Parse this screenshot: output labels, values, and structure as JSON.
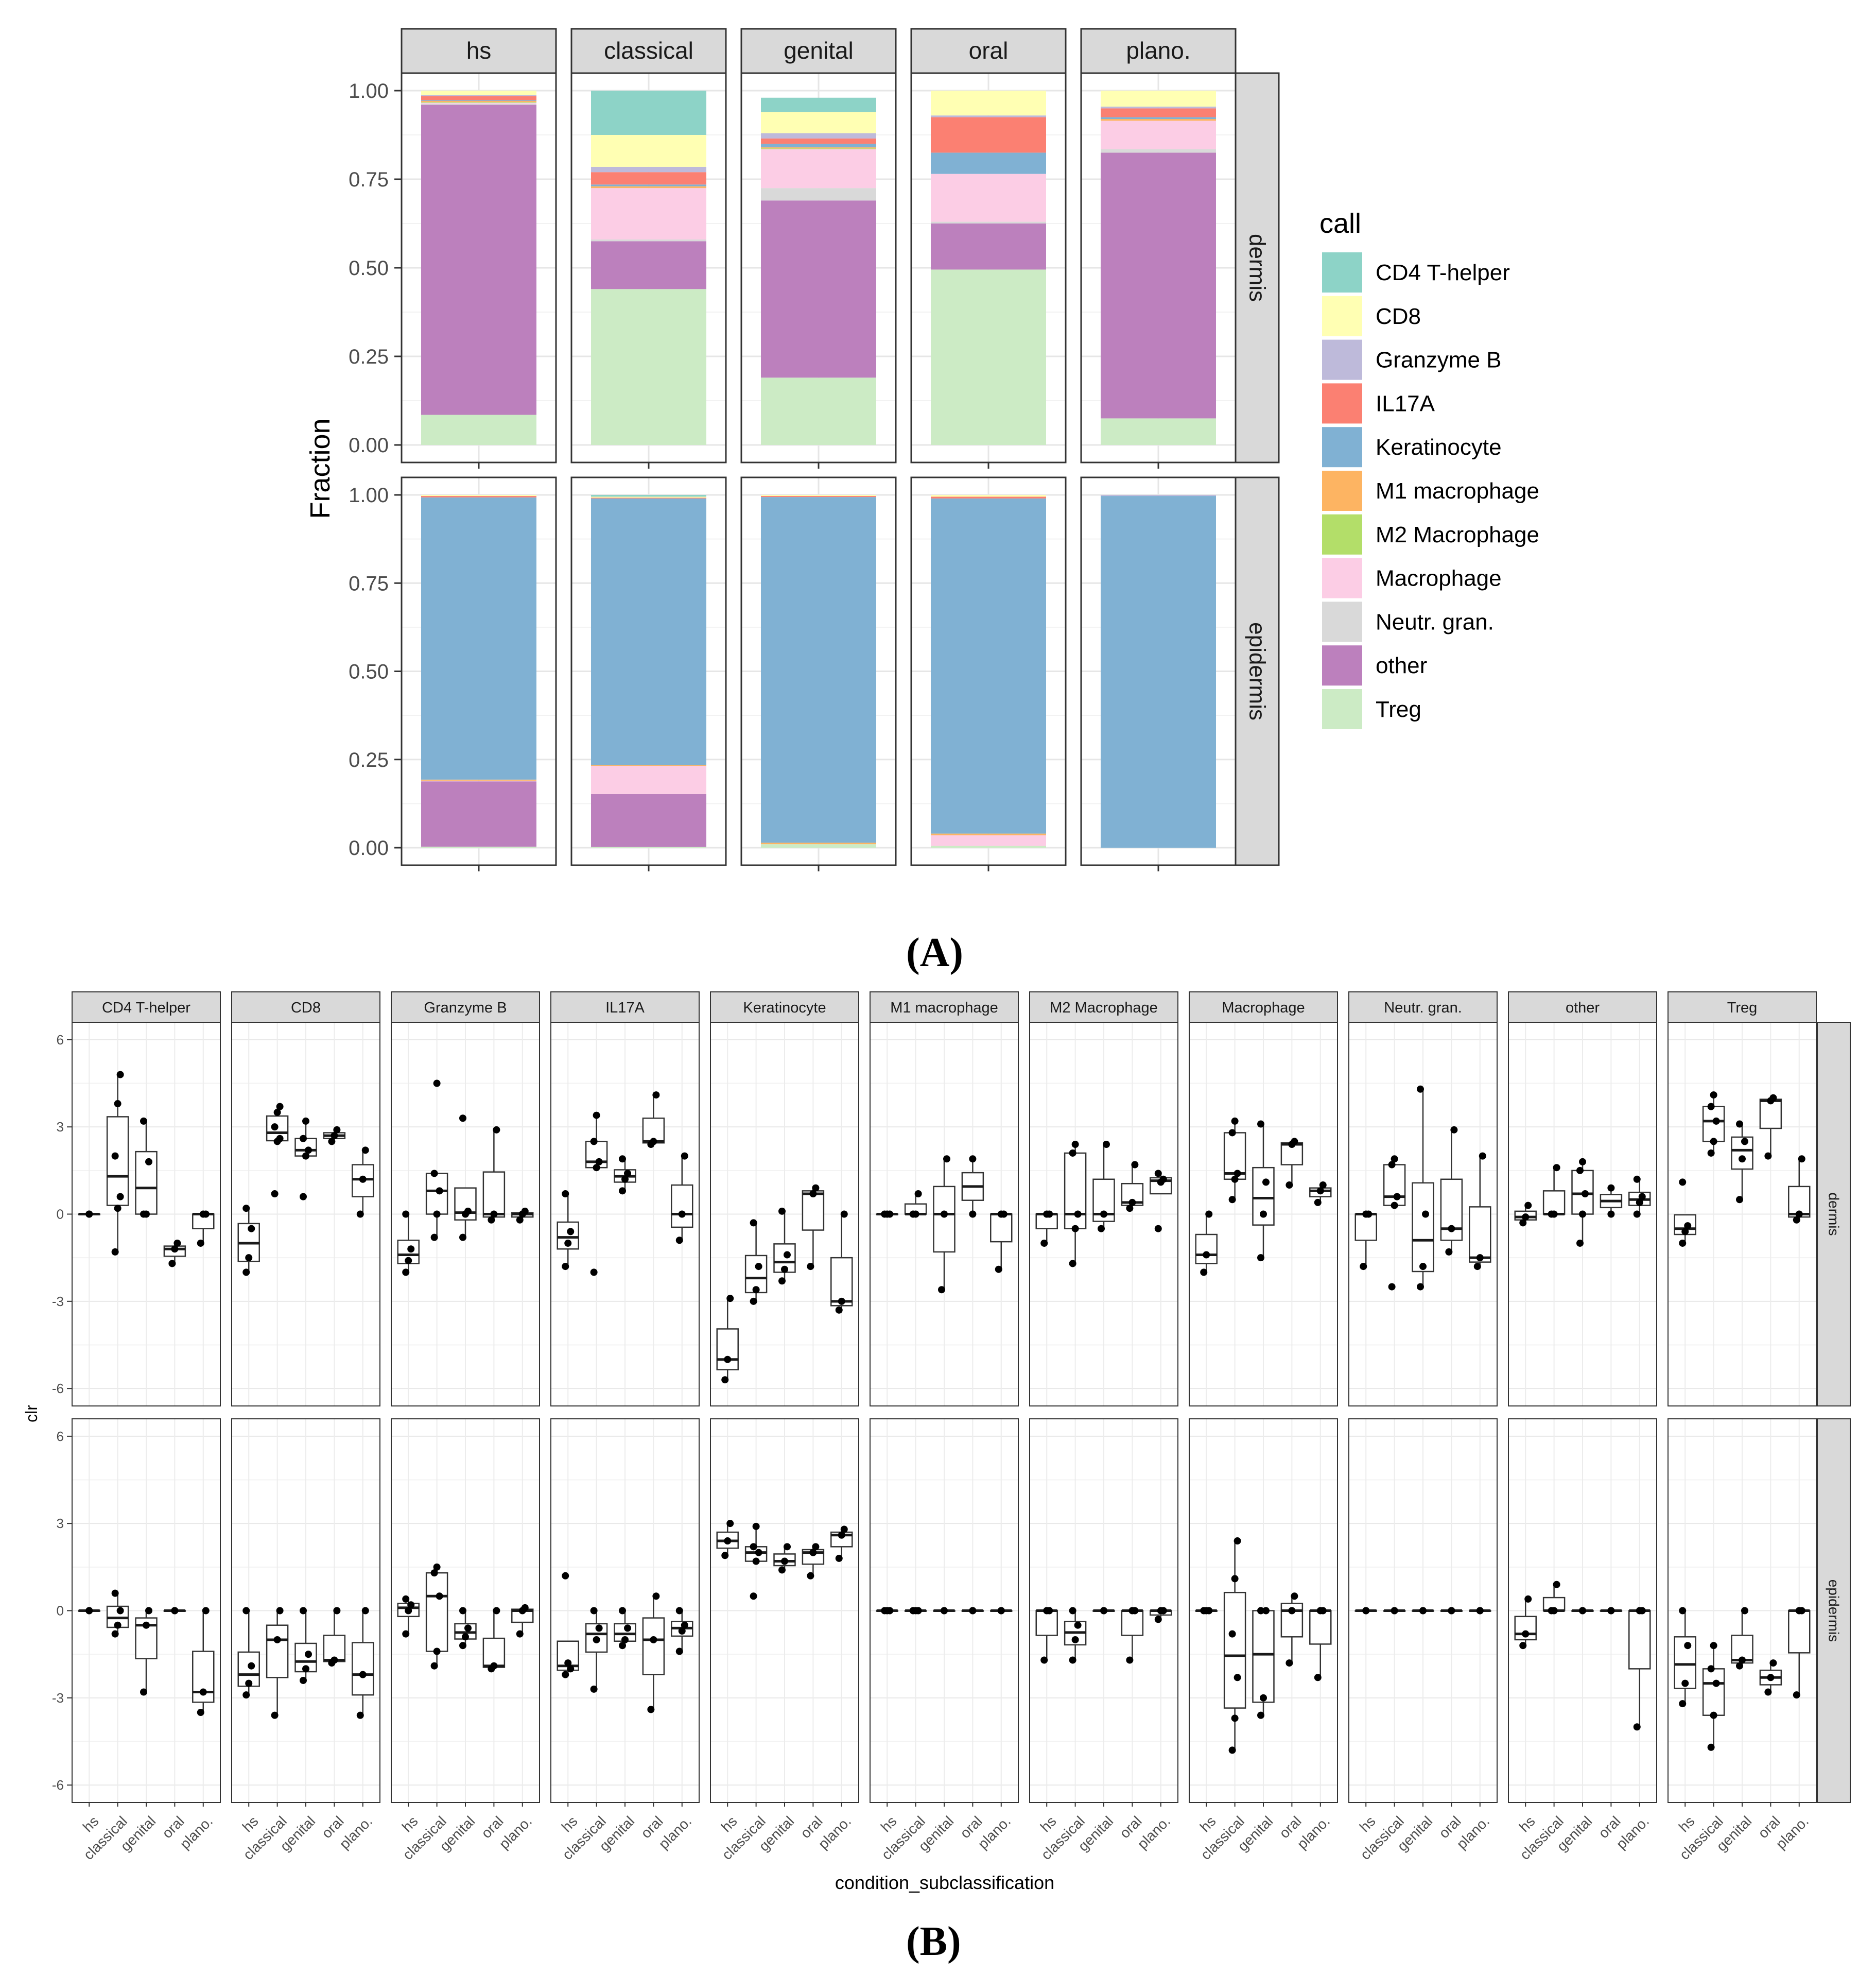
{
  "panel_labels": {
    "a": "(A)",
    "b": "(B)"
  },
  "colors": {
    "CD4 T-helper": "#8dd3c7",
    "CD8": "#ffffb3",
    "Granzyme B": "#bebada",
    "IL17A": "#fb8072",
    "Keratinocyte": "#80b1d3",
    "M1 macrophage": "#fdb462",
    "M2 Macrophage": "#b3de69",
    "Macrophage": "#fccde5",
    "Neutr. gran.": "#d9d9d9",
    "other": "#bc80bd",
    "Treg": "#ccebc5"
  },
  "chart_data": [
    {
      "id": "A",
      "type": "bar",
      "stacked": true,
      "title": "",
      "xlabel": "",
      "ylabel": "Fraction",
      "ylim": [
        0,
        1
      ],
      "yticks": [
        "0.00",
        "0.25",
        "0.50",
        "0.75",
        "1.00"
      ],
      "facet_cols": [
        "hs",
        "classical",
        "genital",
        "oral",
        "plano."
      ],
      "facet_rows": [
        "dermis",
        "epidermis"
      ],
      "legend_title": "call",
      "legend_position": "right",
      "stack_order": [
        "Treg",
        "other",
        "Neutr. gran.",
        "Macrophage",
        "M2 Macrophage",
        "M1 macrophage",
        "Keratinocyte",
        "IL17A",
        "Granzyme B",
        "CD8",
        "CD4 T-helper"
      ],
      "legend": [
        "CD4 T-helper",
        "CD8",
        "Granzyme B",
        "IL17A",
        "Keratinocyte",
        "M1 macrophage",
        "M2 Macrophage",
        "Macrophage",
        "Neutr. gran.",
        "other",
        "Treg"
      ],
      "fractions": {
        "dermis": {
          "hs": {
            "Treg": 0.085,
            "other": 0.875,
            "Neutr. gran.": 0.003,
            "Macrophage": 0.003,
            "M2 Macrophage": 0.002,
            "M1 macrophage": 0.003,
            "Keratinocyte": 0.002,
            "IL17A": 0.012,
            "Granzyme B": 0.003,
            "CD8": 0.012,
            "CD4 T-helper": 0.0
          },
          "classical": {
            "Treg": 0.44,
            "other": 0.135,
            "Neutr. gran.": 0.005,
            "Macrophage": 0.145,
            "M2 Macrophage": 0.0,
            "M1 macrophage": 0.005,
            "Keratinocyte": 0.005,
            "IL17A": 0.035,
            "Granzyme B": 0.015,
            "CD8": 0.09,
            "CD4 T-helper": 0.125
          },
          "genital": {
            "Treg": 0.19,
            "other": 0.5,
            "Neutr. gran.": 0.035,
            "Macrophage": 0.11,
            "M2 Macrophage": 0.002,
            "M1 macrophage": 0.003,
            "Keratinocyte": 0.01,
            "IL17A": 0.015,
            "Granzyme B": 0.015,
            "CD8": 0.06,
            "CD4 T-helper": 0.04
          },
          "oral": {
            "Treg": 0.495,
            "other": 0.13,
            "Neutr. gran.": 0.005,
            "Macrophage": 0.135,
            "M2 Macrophage": 0.0,
            "M1 macrophage": 0.0,
            "Keratinocyte": 0.06,
            "IL17A": 0.1,
            "Granzyme B": 0.005,
            "CD8": 0.07,
            "CD4 T-helper": 0.0
          },
          "plano.": {
            "Treg": 0.075,
            "other": 0.75,
            "Neutr. gran.": 0.01,
            "Macrophage": 0.08,
            "M2 Macrophage": 0.0,
            "M1 macrophage": 0.005,
            "Keratinocyte": 0.005,
            "IL17A": 0.025,
            "Granzyme B": 0.005,
            "CD8": 0.045,
            "CD4 T-helper": 0.0
          }
        },
        "epidermis": {
          "hs": {
            "Treg": 0.003,
            "other": 0.185,
            "Neutr. gran.": 0.0,
            "Macrophage": 0.002,
            "M2 Macrophage": 0.0,
            "M1 macrophage": 0.003,
            "Keratinocyte": 0.8,
            "IL17A": 0.004,
            "Granzyme B": 0.0,
            "CD8": 0.003,
            "CD4 T-helper": 0.0
          },
          "classical": {
            "Treg": 0.002,
            "other": 0.15,
            "Neutr. gran.": 0.0,
            "Macrophage": 0.08,
            "M2 Macrophage": 0.0,
            "M1 macrophage": 0.002,
            "Keratinocyte": 0.756,
            "IL17A": 0.002,
            "Granzyme B": 0.0,
            "CD8": 0.003,
            "CD4 T-helper": 0.005
          },
          "genital": {
            "Treg": 0.01,
            "other": 0.0,
            "Neutr. gran.": 0.0,
            "Macrophage": 0.0,
            "M2 Macrophage": 0.0,
            "M1 macrophage": 0.004,
            "Keratinocyte": 0.98,
            "IL17A": 0.003,
            "Granzyme B": 0.0,
            "CD8": 0.003,
            "CD4 T-helper": 0.0
          },
          "oral": {
            "Treg": 0.005,
            "other": 0.0,
            "Neutr. gran.": 0.0,
            "Macrophage": 0.03,
            "M2 Macrophage": 0.0,
            "M1 macrophage": 0.005,
            "Keratinocyte": 0.95,
            "IL17A": 0.005,
            "Granzyme B": 0.0,
            "CD8": 0.005,
            "CD4 T-helper": 0.0
          },
          "plano.": {
            "Treg": 0.0,
            "other": 0.0,
            "Neutr. gran.": 0.0,
            "Macrophage": 0.0,
            "M2 Macrophage": 0.0,
            "M1 macrophage": 0.0,
            "Keratinocyte": 0.997,
            "IL17A": 0.0,
            "Granzyme B": 0.003,
            "CD8": 0.0,
            "CD4 T-helper": 0.0
          }
        }
      }
    },
    {
      "id": "B",
      "type": "boxplot",
      "title": "",
      "xlabel": "condition_subclassification",
      "ylabel": "clr",
      "ylim": [
        -6,
        6
      ],
      "yticks": [
        -6,
        -3,
        0,
        3,
        6
      ],
      "categories": [
        "hs",
        "classical",
        "genital",
        "oral",
        "plano."
      ],
      "facet_cols": [
        "CD4 T-helper",
        "CD8",
        "Granzyme B",
        "IL17A",
        "Keratinocyte",
        "M1 macrophage",
        "M2 Macrophage",
        "Macrophage",
        "Neutr. gran.",
        "other",
        "Treg"
      ],
      "facet_rows": [
        "dermis",
        "epidermis"
      ],
      "points": {
        "dermis": {
          "CD4 T-helper": [
            [
              0,
              0
            ],
            [
              -1.3,
              0.2,
              0.6,
              2.0,
              3.8,
              4.8
            ],
            [
              0,
              0,
              1.8,
              3.2
            ],
            [
              -1.7,
              -1.2,
              -1.0
            ],
            [
              -1.0,
              0,
              0
            ]
          ],
          "CD8": [
            [
              -2.0,
              -1.5,
              -0.5,
              0.2
            ],
            [
              0.7,
              2.5,
              2.6,
              3.0,
              3.5,
              3.7
            ],
            [
              0.6,
              2.0,
              2.2,
              2.6,
              3.2
            ],
            [
              2.5,
              2.7,
              2.9
            ],
            [
              0,
              1.2,
              2.2
            ]
          ],
          "Granzyme B": [
            [
              -2.0,
              -1.6,
              -1.2,
              0
            ],
            [
              -0.8,
              0,
              0.8,
              1.4,
              4.5
            ],
            [
              -0.8,
              0,
              0.1,
              3.3
            ],
            [
              -0.2,
              0,
              2.9
            ],
            [
              -0.2,
              0,
              0.1
            ]
          ],
          "IL17A": [
            [
              -1.8,
              -1.0,
              -0.6,
              0.7
            ],
            [
              -2.0,
              1.6,
              1.8,
              2.5,
              3.4
            ],
            [
              0.8,
              1.2,
              1.4,
              1.9
            ],
            [
              2.4,
              2.5,
              4.1
            ],
            [
              -0.9,
              0,
              2.0
            ]
          ],
          "Keratinocyte": [
            [
              -5.7,
              -5.0,
              -2.9
            ],
            [
              -3.0,
              -2.6,
              -1.8,
              -0.3
            ],
            [
              -2.3,
              -1.9,
              -1.4,
              0.1
            ],
            [
              -1.8,
              0.7,
              0.9
            ],
            [
              -3.3,
              -3.0,
              0
            ]
          ],
          "M1 macrophage": [
            [
              0,
              0,
              0
            ],
            [
              0,
              0,
              0.7
            ],
            [
              -2.6,
              0,
              1.9
            ],
            [
              0,
              1.9
            ],
            [
              -1.9,
              0,
              0
            ]
          ],
          "M2 Macrophage": [
            [
              -1.0,
              0,
              0
            ],
            [
              -1.7,
              -0.5,
              0,
              2.1,
              2.4
            ],
            [
              -0.5,
              0,
              2.4
            ],
            [
              0.2,
              0.4,
              1.7
            ],
            [
              -0.5,
              1.1,
              1.2,
              1.4
            ]
          ],
          "Macrophage": [
            [
              -2.0,
              -1.4,
              0
            ],
            [
              0.5,
              1.2,
              1.4,
              2.8,
              3.2
            ],
            [
              -1.5,
              0,
              1.1,
              3.1
            ],
            [
              1.0,
              2.4,
              2.5
            ],
            [
              0.4,
              0.8,
              1.0
            ]
          ],
          "Neutr. gran.": [
            [
              -1.8,
              0,
              0
            ],
            [
              -2.5,
              0.3,
              0.6,
              1.7,
              1.9
            ],
            [
              -2.5,
              -1.8,
              0,
              4.3
            ],
            [
              -1.3,
              -0.5,
              2.9
            ],
            [
              -1.8,
              -1.5,
              2.0
            ]
          ],
          "other": [
            [
              -0.3,
              -0.1,
              0.3
            ],
            [
              0,
              0,
              1.6
            ],
            [
              -1.0,
              0,
              0.7,
              1.5,
              1.8
            ],
            [
              0,
              0.9
            ],
            [
              0,
              0.4,
              0.6,
              1.2
            ]
          ],
          "Treg": [
            [
              -1.0,
              -0.6,
              -0.4,
              1.1
            ],
            [
              2.1,
              2.5,
              3.2,
              3.7,
              4.1
            ],
            [
              0.5,
              1.9,
              2.5,
              3.1
            ],
            [
              2.0,
              3.9,
              4.0
            ],
            [
              -0.2,
              0,
              1.9
            ]
          ]
        },
        "epidermis": {
          "CD4 T-helper": [
            [
              0,
              0
            ],
            [
              -0.8,
              -0.5,
              0,
              0.6
            ],
            [
              -2.8,
              -0.5,
              0
            ],
            [
              0,
              0
            ],
            [
              -3.5,
              -2.8,
              0
            ]
          ],
          "CD8": [
            [
              -2.9,
              -2.5,
              -1.9,
              0
            ],
            [
              -3.6,
              -1.0,
              0
            ],
            [
              -2.4,
              -2.0,
              -1.5,
              0
            ],
            [
              -1.8,
              -1.7,
              0
            ],
            [
              -3.6,
              -2.2,
              0
            ]
          ],
          "Granzyme B": [
            [
              -0.8,
              0,
              0.2,
              0.4
            ],
            [
              -1.9,
              -1.4,
              0.5,
              1.3,
              1.5
            ],
            [
              -1.2,
              -0.9,
              -0.6,
              0
            ],
            [
              -2.0,
              -1.9,
              0
            ],
            [
              -0.8,
              0,
              0.1
            ]
          ],
          "IL17A": [
            [
              -2.2,
              -1.8,
              -2.0,
              1.2
            ],
            [
              -2.7,
              -1.0,
              -0.6,
              0
            ],
            [
              -1.2,
              -1.0,
              -0.6,
              0
            ],
            [
              -3.4,
              -1.0,
              0.5
            ],
            [
              -1.4,
              -0.7,
              -0.5,
              0
            ]
          ],
          "Keratinocyte": [
            [
              1.9,
              2.4,
              3.0
            ],
            [
              0.5,
              1.7,
              2.0,
              2.2,
              2.9
            ],
            [
              1.4,
              1.7,
              2.2
            ],
            [
              1.2,
              2.0,
              2.2
            ],
            [
              1.8,
              2.6,
              2.8
            ]
          ],
          "M1 macrophage": [
            [
              0,
              0,
              0
            ],
            [
              0,
              0,
              0
            ],
            [
              0,
              0
            ],
            [
              0,
              0
            ],
            [
              0,
              0
            ]
          ],
          "M2 Macrophage": [
            [
              -1.7,
              0,
              0
            ],
            [
              -1.7,
              -1.0,
              -0.5,
              0
            ],
            [
              0,
              0
            ],
            [
              -1.7,
              0,
              0
            ],
            [
              -0.3,
              0,
              0
            ]
          ],
          "Macrophage": [
            [
              0,
              0,
              0
            ],
            [
              -4.8,
              -3.7,
              -2.3,
              -0.8,
              1.1,
              2.4
            ],
            [
              -3.6,
              -3.0,
              0,
              0
            ],
            [
              -1.8,
              0,
              0.5
            ],
            [
              -2.3,
              0,
              0
            ]
          ],
          "Neutr. gran.": [
            [
              0,
              0
            ],
            [
              0,
              0
            ],
            [
              0,
              0
            ],
            [
              0,
              0
            ],
            [
              0,
              0
            ]
          ],
          "other": [
            [
              -1.2,
              -0.8,
              0.4
            ],
            [
              0,
              0,
              0.9
            ],
            [
              0,
              0
            ],
            [
              0,
              0
            ],
            [
              -4.0,
              0,
              0
            ]
          ],
          "Treg": [
            [
              -3.2,
              -2.5,
              -1.2,
              0
            ],
            [
              -4.7,
              -3.6,
              -2.5,
              -2.0,
              -1.2
            ],
            [
              -1.9,
              -1.7,
              0
            ],
            [
              -2.8,
              -2.3,
              -1.8
            ],
            [
              -2.9,
              0,
              0
            ]
          ]
        }
      }
    }
  ]
}
